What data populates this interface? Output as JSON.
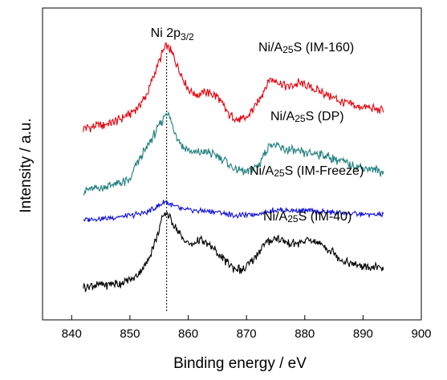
{
  "chart_data": {
    "type": "line",
    "title": "",
    "xlabel": "Binding energy / eV",
    "ylabel": "Intensity / a.u.",
    "xlim": [
      835,
      900
    ],
    "xticks": [
      840,
      850,
      860,
      870,
      880,
      890,
      900
    ],
    "x_range_data": [
      842,
      893.5
    ],
    "y_axis_ticks": false,
    "grid": false,
    "legend": "none (labels placed next to curves)",
    "annotation": {
      "text": "Ni 2p",
      "sub": "3/2",
      "x": 856.3,
      "line_style": "dotted vertical"
    },
    "series": [
      {
        "name": "Ni/A25S (IM-160)",
        "label_main": "Ni/A",
        "label_sub": "25",
        "label_rest": "S (IM-160)",
        "color": "#e8000b",
        "offset": 3,
        "points": [
          [
            842,
            0.0
          ],
          [
            847,
            0.06
          ],
          [
            851,
            0.22
          ],
          [
            853,
            0.42
          ],
          [
            854.5,
            0.72
          ],
          [
            855.5,
            0.9
          ],
          [
            856.2,
            1.0
          ],
          [
            857.2,
            0.92
          ],
          [
            858.5,
            0.7
          ],
          [
            860,
            0.48
          ],
          [
            861.5,
            0.4
          ],
          [
            863,
            0.44
          ],
          [
            865,
            0.38
          ],
          [
            867,
            0.16
          ],
          [
            868.5,
            0.1
          ],
          [
            870,
            0.12
          ],
          [
            872,
            0.32
          ],
          [
            874,
            0.6
          ],
          [
            875,
            0.58
          ],
          [
            877,
            0.5
          ],
          [
            879,
            0.55
          ],
          [
            881,
            0.5
          ],
          [
            884,
            0.4
          ],
          [
            887,
            0.3
          ],
          [
            890,
            0.25
          ],
          [
            893.5,
            0.22
          ]
        ]
      },
      {
        "name": "Ni/A25S (DP)",
        "label_main": "Ni/A",
        "label_sub": "25",
        "label_rest": "S (DP)",
        "color": "#1f7f7f",
        "offset": 2,
        "points": [
          [
            842,
            0.0
          ],
          [
            846,
            0.05
          ],
          [
            850,
            0.12
          ],
          [
            851,
            0.3
          ],
          [
            853,
            0.52
          ],
          [
            854.5,
            0.7
          ],
          [
            855.5,
            0.82
          ],
          [
            856.3,
            0.95
          ],
          [
            857.5,
            0.72
          ],
          [
            859,
            0.52
          ],
          [
            861,
            0.44
          ],
          [
            863,
            0.46
          ],
          [
            866,
            0.38
          ],
          [
            868,
            0.25
          ],
          [
            870,
            0.22
          ],
          [
            872,
            0.3
          ],
          [
            874,
            0.55
          ],
          [
            876,
            0.5
          ],
          [
            879,
            0.45
          ],
          [
            882,
            0.44
          ],
          [
            885,
            0.38
          ],
          [
            888,
            0.3
          ],
          [
            891,
            0.26
          ],
          [
            893.5,
            0.22
          ]
        ]
      },
      {
        "name": "Ni/A25S (IM-Freeze)",
        "label_main": "Ni/A",
        "label_sub": "25",
        "label_rest": "S (IM-Freeze)",
        "color": "#1010d8",
        "offset": 1,
        "points": [
          [
            842,
            0.0
          ],
          [
            846,
            0.03
          ],
          [
            850,
            0.08
          ],
          [
            853,
            0.15
          ],
          [
            855,
            0.28
          ],
          [
            856,
            0.36
          ],
          [
            857.5,
            0.28
          ],
          [
            859,
            0.2
          ],
          [
            862,
            0.18
          ],
          [
            865,
            0.15
          ],
          [
            868,
            0.08
          ],
          [
            870,
            0.09
          ],
          [
            873,
            0.14
          ],
          [
            875,
            0.2
          ],
          [
            878,
            0.18
          ],
          [
            881,
            0.17
          ],
          [
            885,
            0.14
          ],
          [
            888,
            0.12
          ],
          [
            891,
            0.1
          ],
          [
            893.5,
            0.1
          ]
        ]
      },
      {
        "name": "Ni/A25S (IM-40)",
        "label_main": "Ni/A",
        "label_sub": "25",
        "label_rest": "S (IM-40)",
        "color": "#000000",
        "offset": 0,
        "points": [
          [
            842,
            0.0
          ],
          [
            846,
            0.03
          ],
          [
            849,
            0.05
          ],
          [
            851,
            0.12
          ],
          [
            853,
            0.3
          ],
          [
            854.5,
            0.58
          ],
          [
            855.5,
            0.8
          ],
          [
            856.3,
            0.9
          ],
          [
            857.5,
            0.75
          ],
          [
            859,
            0.58
          ],
          [
            860.5,
            0.5
          ],
          [
            862,
            0.56
          ],
          [
            864,
            0.48
          ],
          [
            866,
            0.33
          ],
          [
            868,
            0.22
          ],
          [
            869.5,
            0.2
          ],
          [
            871,
            0.3
          ],
          [
            873,
            0.5
          ],
          [
            875,
            0.58
          ],
          [
            877,
            0.52
          ],
          [
            879,
            0.52
          ],
          [
            881,
            0.56
          ],
          [
            883,
            0.5
          ],
          [
            885,
            0.4
          ],
          [
            887,
            0.3
          ],
          [
            890,
            0.24
          ],
          [
            893.5,
            0.22
          ]
        ]
      }
    ]
  }
}
